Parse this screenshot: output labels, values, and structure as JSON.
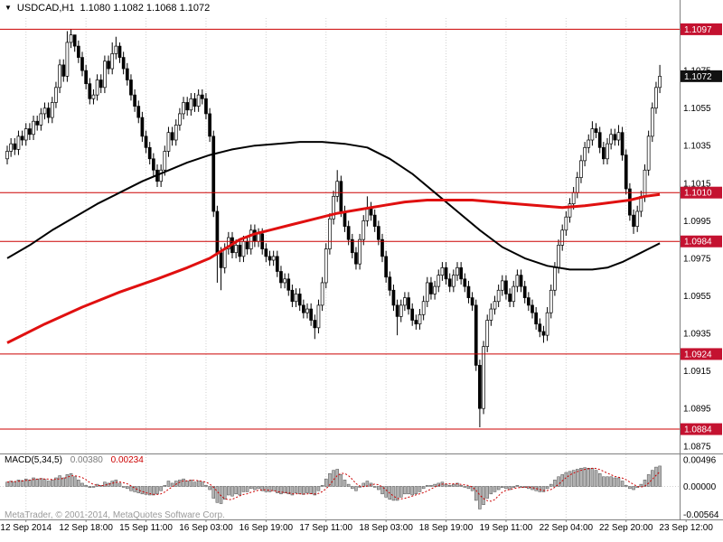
{
  "header": {
    "symbol": "USDCAD,H1",
    "quotes": "1.1080 1.1082 1.1068 1.1072"
  },
  "icons": {
    "symbol_dropdown": "▼"
  },
  "watermark": "MetaTrader, © 2001-2014, MetaQuotes Software Corp.",
  "chart_data": {
    "type": "candlestick",
    "symbol": "USDCAD",
    "timeframe": "H1",
    "quote": {
      "open": 1.108,
      "high": 1.1082,
      "low": 1.1068,
      "close": 1.1072
    },
    "current_price": 1.1072,
    "y_range": [
      1.0872,
      1.1102
    ],
    "price_axis_labels": [
      1.1075,
      1.1055,
      1.1035,
      1.1015,
      1.0995,
      1.0975,
      1.0955,
      1.0935,
      1.0915,
      1.0895,
      1.0875
    ],
    "level_lines": [
      1.1097,
      1.101,
      1.0984,
      1.0924,
      1.0884
    ],
    "time_labels": [
      {
        "label": "12 Sep 2014",
        "bar": 5
      },
      {
        "label": "12 Sep 18:00",
        "bar": 21
      },
      {
        "label": "15 Sep 11:00",
        "bar": 37
      },
      {
        "label": "16 Sep 03:00",
        "bar": 53
      },
      {
        "label": "16 Sep 19:00",
        "bar": 69
      },
      {
        "label": "17 Sep 11:00",
        "bar": 85
      },
      {
        "label": "18 Sep 03:00",
        "bar": 101
      },
      {
        "label": "18 Sep 19:00",
        "bar": 117
      },
      {
        "label": "19 Sep 11:00",
        "bar": 133
      },
      {
        "label": "22 Sep 04:00",
        "bar": 149
      },
      {
        "label": "22 Sep 20:00",
        "bar": 165
      },
      {
        "label": "23 Sep 12:00",
        "bar": 181
      }
    ],
    "closes": [
      1.1032,
      1.1036,
      1.1033,
      1.104,
      1.1038,
      1.1044,
      1.1041,
      1.1048,
      1.1046,
      1.1052,
      1.1055,
      1.105,
      1.1058,
      1.1066,
      1.1078,
      1.1072,
      1.109,
      1.1094,
      1.1088,
      1.1082,
      1.1075,
      1.1068,
      1.106,
      1.1062,
      1.107,
      1.1066,
      1.108,
      1.1076,
      1.1084,
      1.1088,
      1.1082,
      1.1076,
      1.107,
      1.1062,
      1.1056,
      1.105,
      1.104,
      1.1034,
      1.1028,
      1.1022,
      1.1016,
      1.1022,
      1.1032,
      1.1042,
      1.1038,
      1.1046,
      1.1052,
      1.1058,
      1.1054,
      1.106,
      1.1056,
      1.1062,
      1.106,
      1.1052,
      1.104,
      1.1,
      1.0978,
      1.097,
      1.098,
      1.0986,
      1.0978,
      1.0982,
      1.0976,
      1.0984,
      1.098,
      1.099,
      1.0984,
      1.0988,
      1.098,
      1.0976,
      1.0974,
      1.0976,
      1.0968,
      1.0962,
      1.0964,
      1.0958,
      1.0952,
      1.0956,
      1.095,
      1.0946,
      1.0948,
      1.0942,
      1.0938,
      1.095,
      1.0962,
      1.098,
      1.0996,
      1.1008,
      1.1016,
      1.1,
      1.0992,
      1.0985,
      1.0978,
      1.0972,
      1.0985,
      1.0995,
      1.1002,
      1.0998,
      1.0992,
      1.0985,
      1.0976,
      1.0965,
      1.0958,
      1.095,
      1.0944,
      1.095,
      1.0954,
      1.0948,
      1.0942,
      1.094,
      1.0945,
      1.0952,
      1.0962,
      1.0956,
      1.096,
      1.0966,
      1.097,
      1.0964,
      1.096,
      1.0966,
      1.097,
      1.0964,
      1.096,
      1.0954,
      1.095,
      1.0918,
      1.0895,
      1.0928,
      1.0942,
      1.0948,
      1.0952,
      1.0958,
      1.0963,
      1.0956,
      1.0952,
      1.096,
      1.0966,
      1.096,
      1.0954,
      1.095,
      1.0946,
      1.094,
      1.0936,
      1.0934,
      1.0946,
      1.0958,
      1.097,
      1.0982,
      1.099,
      1.0997,
      1.1004,
      1.101,
      1.1018,
      1.1027,
      1.1034,
      1.1038,
      1.1044,
      1.1042,
      1.1034,
      1.1028,
      1.1036,
      1.1041,
      1.1038,
      1.1042,
      1.103,
      1.1012,
      1.0998,
      1.0992,
      1.1,
      1.1008,
      1.1022,
      1.104,
      1.1055,
      1.1066,
      1.1072
    ],
    "highs_override": {
      "16": 1.1096,
      "17": 1.1097,
      "18": 1.1092,
      "28": 1.109,
      "29": 1.1093,
      "30": 1.109,
      "88": 1.1022,
      "96": 1.1008,
      "156": 1.1048,
      "163": 1.1046,
      "174": 1.1078
    },
    "lows_override": {
      "40": 1.1013,
      "56": 1.0962,
      "57": 1.0958,
      "82": 1.0932,
      "104": 1.0934,
      "126": 1.0885,
      "143": 1.093,
      "167": 1.0988
    },
    "ma_black": {
      "name": "slow-ma-black",
      "points": [
        [
          0,
          1.0975
        ],
        [
          6,
          1.0982
        ],
        [
          12,
          1.099
        ],
        [
          18,
          1.0997
        ],
        [
          24,
          1.1004
        ],
        [
          30,
          1.101
        ],
        [
          36,
          1.1016
        ],
        [
          42,
          1.1021
        ],
        [
          48,
          1.1026
        ],
        [
          54,
          1.103
        ],
        [
          60,
          1.1033
        ],
        [
          66,
          1.1035
        ],
        [
          72,
          1.1036
        ],
        [
          78,
          1.1037
        ],
        [
          84,
          1.1037
        ],
        [
          90,
          1.1036
        ],
        [
          96,
          1.1034
        ],
        [
          102,
          1.1028
        ],
        [
          108,
          1.102
        ],
        [
          114,
          1.101
        ],
        [
          120,
          1.1
        ],
        [
          126,
          1.099
        ],
        [
          132,
          1.0981
        ],
        [
          138,
          1.0975
        ],
        [
          144,
          1.0971
        ],
        [
          150,
          1.0969
        ],
        [
          156,
          1.0969
        ],
        [
          160,
          1.097
        ],
        [
          164,
          1.0973
        ],
        [
          168,
          1.0977
        ],
        [
          171,
          1.098
        ],
        [
          174,
          1.0983
        ]
      ]
    },
    "ma_red": {
      "name": "slow-ma-red",
      "points": [
        [
          0,
          1.093
        ],
        [
          10,
          1.094
        ],
        [
          20,
          1.0949
        ],
        [
          30,
          1.0957
        ],
        [
          40,
          1.0964
        ],
        [
          48,
          1.097
        ],
        [
          54,
          1.0975
        ],
        [
          58,
          1.098
        ],
        [
          62,
          1.0985
        ],
        [
          66,
          1.0988
        ],
        [
          70,
          1.099
        ],
        [
          76,
          1.0993
        ],
        [
          82,
          1.0996
        ],
        [
          88,
          1.0999
        ],
        [
          94,
          1.1001
        ],
        [
          100,
          1.1003
        ],
        [
          106,
          1.1005
        ],
        [
          112,
          1.1006
        ],
        [
          118,
          1.1006
        ],
        [
          124,
          1.1006
        ],
        [
          130,
          1.1005
        ],
        [
          136,
          1.1004
        ],
        [
          142,
          1.1003
        ],
        [
          148,
          1.1002
        ],
        [
          154,
          1.1003
        ],
        [
          158,
          1.1004
        ],
        [
          162,
          1.1005
        ],
        [
          166,
          1.1006
        ],
        [
          170,
          1.1008
        ],
        [
          174,
          1.1009
        ]
      ]
    },
    "macd": {
      "title": "MACD(5,34,5)",
      "value": "0.00380",
      "signal": "0.00234",
      "y_range": [
        -0.00564,
        0.00496
      ],
      "axis_labels": [
        {
          "label": "0.00496",
          "value": 0.00496
        },
        {
          "label": "0.00000",
          "value": 0.0
        },
        {
          "label": "-0.00564",
          "value": -0.00564
        }
      ],
      "values": [
        0.0008,
        0.001,
        0.0009,
        0.0012,
        0.0011,
        0.0014,
        0.0012,
        0.0016,
        0.0014,
        0.0015,
        0.0013,
        0.001,
        0.0012,
        0.0016,
        0.002,
        0.0016,
        0.0022,
        0.0024,
        0.0018,
        0.0012,
        0.0006,
        0.0002,
        -0.0002,
        0.0,
        0.0004,
        0.0002,
        0.0008,
        0.0006,
        0.001,
        0.0012,
        0.0006,
        0.0,
        -0.0004,
        -0.0008,
        -0.001,
        -0.0012,
        -0.0014,
        -0.0015,
        -0.0016,
        -0.0016,
        -0.0014,
        -0.0008,
        0.0002,
        0.001,
        0.0006,
        0.001,
        0.0012,
        0.0014,
        0.001,
        0.0012,
        0.0008,
        0.001,
        0.0008,
        0.0002,
        -0.0006,
        -0.0022,
        -0.003,
        -0.0032,
        -0.0024,
        -0.0016,
        -0.0018,
        -0.0014,
        -0.0016,
        -0.001,
        -0.001,
        -0.0004,
        -0.0006,
        -0.0004,
        -0.0008,
        -0.001,
        -0.001,
        -0.0008,
        -0.0012,
        -0.0014,
        -0.0012,
        -0.0014,
        -0.0016,
        -0.0012,
        -0.0014,
        -0.0015,
        -0.0012,
        -0.0014,
        -0.0016,
        -0.0008,
        0.0002,
        0.0014,
        0.0024,
        0.003,
        0.0032,
        0.0022,
        0.0012,
        0.0004,
        -0.0004,
        -0.0008,
        0.0,
        0.0006,
        0.001,
        0.0006,
        0.0,
        -0.0006,
        -0.0014,
        -0.002,
        -0.0024,
        -0.0026,
        -0.0026,
        -0.002,
        -0.0014,
        -0.0014,
        -0.0016,
        -0.0014,
        -0.001,
        -0.0004,
        0.0002,
        0.0002,
        0.0004,
        0.0006,
        0.0008,
        0.0004,
        0.0002,
        0.0004,
        0.0006,
        0.0002,
        0.0,
        -0.0004,
        -0.0008,
        -0.0026,
        -0.0042,
        -0.0034,
        -0.0022,
        -0.0014,
        -0.001,
        -0.0006,
        -0.0002,
        -0.0004,
        -0.0006,
        -0.0002,
        0.0002,
        0.0,
        -0.0002,
        -0.0004,
        -0.0006,
        -0.0008,
        -0.001,
        -0.001,
        -0.0004,
        0.0004,
        0.0012,
        0.0018,
        0.0022,
        0.0026,
        0.0028,
        0.003,
        0.0032,
        0.0034,
        0.0035,
        0.0034,
        0.0034,
        0.003,
        0.0024,
        0.0018,
        0.0018,
        0.0018,
        0.0016,
        0.0016,
        0.001,
        0.0002,
        -0.0004,
        -0.0006,
        -0.0002,
        0.0004,
        0.0012,
        0.0022,
        0.003,
        0.0036,
        0.0038
      ]
    },
    "colors": {
      "level_line": "#cc0000",
      "badge_red": "#c41230",
      "badge_current": "#111111",
      "ma_red": "#e01010",
      "ma_black": "#000000",
      "bull_body": "#ffffff",
      "bear_body": "#000000",
      "wick": "#000000",
      "hist_fill": "#b4b4b4",
      "hist_stroke": "#4d4d4d",
      "signal": "#cc0000",
      "grid": "#d2d2d2",
      "axis_text": "#000000",
      "border": "#808080"
    }
  }
}
